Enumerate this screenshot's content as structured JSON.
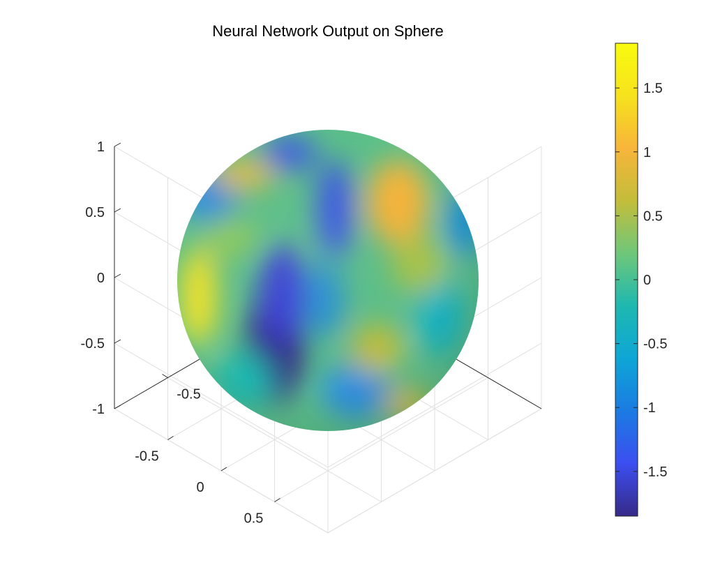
{
  "chart_data": {
    "type": "surface",
    "title": "Neural Network Output on Sphere",
    "surface": "unit-sphere",
    "colormap": "parula",
    "colormap_stops": [
      "#352a87",
      "#3c4ef0",
      "#1b7be2",
      "#0ea6d6",
      "#1eb8b0",
      "#6fc77a",
      "#c3bd3a",
      "#f7b53a",
      "#f6e21d",
      "#f9fb0e"
    ],
    "axes": {
      "x": {
        "ticks": [
          -0.5,
          0,
          0.5
        ],
        "tick_labels": [
          "-0.5",
          "0",
          "0.5"
        ],
        "lim": [
          -1,
          1
        ]
      },
      "y": {
        "ticks": [
          -0.5,
          0,
          0.5
        ],
        "tick_labels": [
          "-0.5",
          "0",
          "0.5"
        ],
        "lim": [
          -1,
          1
        ]
      },
      "z": {
        "ticks": [
          -1,
          -0.5,
          0,
          0.5,
          1
        ],
        "tick_labels": [
          "-1",
          "-0.5",
          "0",
          "0.5",
          "1"
        ],
        "lim": [
          -1,
          1
        ]
      }
    },
    "grid": true,
    "colorbar": {
      "lim": [
        -1.85,
        1.85
      ],
      "ticks": [
        -1.5,
        -1,
        -0.5,
        0,
        0.5,
        1,
        1.5
      ],
      "tick_labels": [
        "-1.5",
        "-1",
        "-0.5",
        "0",
        "0.5",
        "1",
        "1.5"
      ],
      "placement": "right"
    }
  }
}
